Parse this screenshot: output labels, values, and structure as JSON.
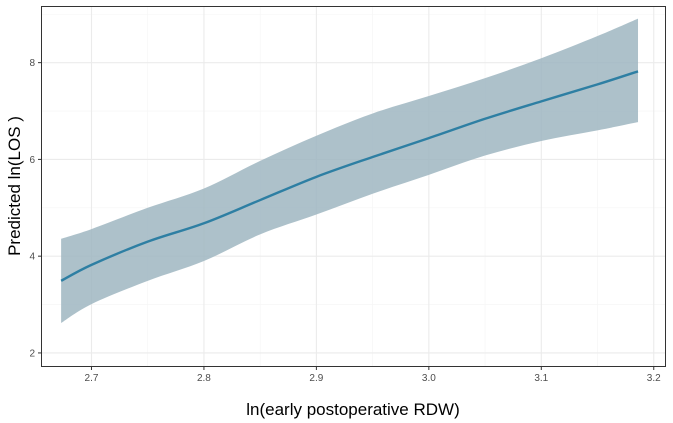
{
  "chart_data": {
    "type": "line",
    "title": "",
    "xlabel": "ln(early postoperative RDW)",
    "ylabel": "Predicted ln(LOS )",
    "xlim": [
      2.656,
      3.21
    ],
    "ylim": [
      1.73,
      9.15
    ],
    "x_ticks": [
      2.7,
      2.8,
      2.9,
      3.0,
      3.1,
      3.2
    ],
    "x_tick_labels": [
      "2.7",
      "2.8",
      "2.9",
      "3.0",
      "3.1",
      "3.2"
    ],
    "y_ticks": [
      2,
      4,
      6,
      8
    ],
    "y_tick_labels": [
      "2",
      "4",
      "6",
      "8"
    ],
    "grid": true,
    "legend": "none",
    "colors": {
      "line": "#2e7fa3",
      "ribbon": "#9fb6c1",
      "grid_major": "#ebebeb",
      "grid_minor": "#f5f5f5",
      "panel_border": "#333333"
    },
    "series": [
      {
        "x": [
          2.673,
          2.7,
          2.75,
          2.8,
          2.85,
          2.9,
          2.95,
          3.0,
          3.05,
          3.1,
          3.15,
          3.186
        ],
        "y": [
          3.49,
          3.82,
          4.3,
          4.68,
          5.16,
          5.64,
          6.05,
          6.44,
          6.84,
          7.2,
          7.55,
          7.82
        ],
        "lower": [
          2.62,
          3.01,
          3.49,
          3.9,
          4.45,
          4.86,
          5.29,
          5.68,
          6.08,
          6.38,
          6.6,
          6.77
        ],
        "upper": [
          4.36,
          4.56,
          5.0,
          5.4,
          5.97,
          6.49,
          6.95,
          7.31,
          7.68,
          8.09,
          8.55,
          8.91
        ]
      }
    ]
  }
}
